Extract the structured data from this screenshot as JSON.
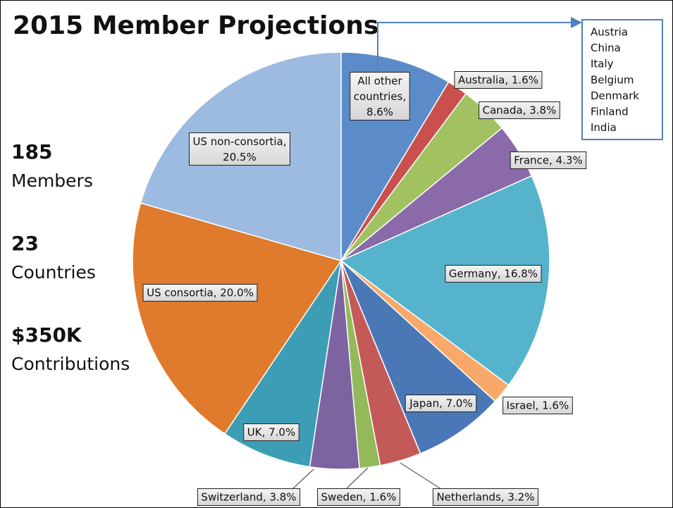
{
  "chart_data": {
    "type": "pie",
    "title": "2015 Member Projections",
    "values": [
      8.6,
      1.6,
      3.8,
      4.3,
      16.8,
      1.6,
      7.0,
      3.2,
      1.6,
      3.8,
      7.0,
      20.0,
      20.5
    ],
    "value_labels": [
      "All other countries, 8.6%",
      "Australia, 1.6%",
      "Canada, 3.8%",
      "France, 4.3%",
      "Germany, 16.8%",
      "Israel, 1.6%",
      "Japan, 7.0%",
      "Netherlands, 3.2%",
      "Sweden, 1.6%",
      "Switzerland, 3.8%",
      "UK, 7.0%",
      "US consortia, 20.0%",
      "US non-consortia, 20.5%"
    ],
    "colors": [
      "#5b8cc9",
      "#c9504d",
      "#a2c262",
      "#8a6aa8",
      "#55b3cc",
      "#f8a96a",
      "#4a78b6",
      "#c45a58",
      "#93b95a",
      "#7d63a0",
      "#3d9db5",
      "#e07a2c",
      "#9dbbe0"
    ]
  },
  "stats": [
    {
      "number": "185",
      "caption": "Members"
    },
    {
      "number": "23",
      "caption": "Countries"
    },
    {
      "number": "$350K",
      "caption": "Contributions"
    }
  ],
  "note": [
    "Austria",
    "China",
    "Italy",
    "Belgium",
    "Denmark",
    "Finland",
    "India"
  ]
}
